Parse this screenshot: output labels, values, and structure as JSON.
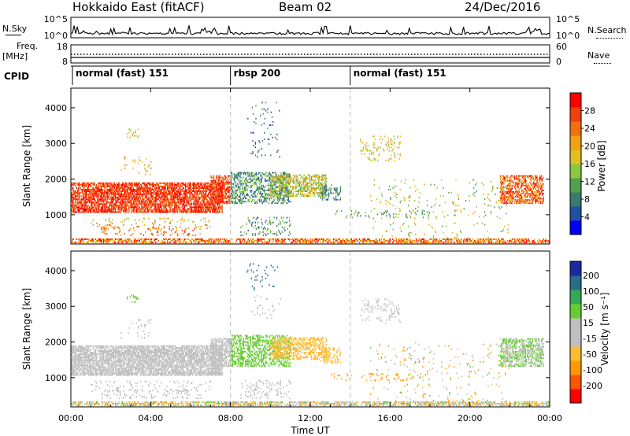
{
  "header": {
    "title": "Hokkaido East (fitACF)",
    "beam": "Beam 02",
    "date": "24/Dec/2016"
  },
  "status_labels": {
    "nsky": "N.Sky",
    "nsearch": "N.Search",
    "freq": "Freq.",
    "freq_unit": "[MHz]",
    "nave": "Nave",
    "cpid": "CPID",
    "nsky_ticks": [
      "10^5",
      "10^0"
    ],
    "nsearch_ticks": [
      "10^5",
      "10^0"
    ],
    "freq_ticks": [
      "18",
      "8"
    ],
    "nave_ticks": [
      "60",
      "0"
    ]
  },
  "cpid_segments": [
    {
      "label": "normal (fast) 151",
      "start_h": 0
    },
    {
      "label": "rbsp 200",
      "start_h": 8
    },
    {
      "label": "normal (fast) 151",
      "start_h": 14
    }
  ],
  "colors": {
    "power_scale": [
      "#0000ff",
      "#2050a0",
      "#3a7a70",
      "#50a050",
      "#8cc840",
      "#e0c020",
      "#f0a010",
      "#f07010",
      "#f04010",
      "#ff0000"
    ],
    "velocity_scale": [
      "#ff0000",
      "#ff5500",
      "#ff9900",
      "#ffbb33",
      "#c0c0c0",
      "#c0c0c0",
      "#66cc33",
      "#33aa55",
      "#2a6a8a",
      "#1a2aa0"
    ]
  },
  "chart_data": [
    {
      "type": "heatmap",
      "name": "power-panel",
      "ylabel": "Slant Range [km]",
      "yticks": [
        1000,
        2000,
        3000,
        4000
      ],
      "ylim": [
        180,
        4550
      ],
      "xlim_h": [
        0,
        24
      ],
      "colorbar": {
        "label": "Power [dB]",
        "ticks": [
          4,
          8,
          12,
          16,
          20,
          24,
          28
        ]
      }
    },
    {
      "type": "heatmap",
      "name": "velocity-panel",
      "ylabel": "Slant Range [km]",
      "yticks": [
        1000,
        2000,
        3000,
        4000
      ],
      "ylim": [
        180,
        4550
      ],
      "xlim_h": [
        0,
        24
      ],
      "xlabel": "Time UT",
      "xticks": [
        "00:00",
        "04:00",
        "08:00",
        "12:00",
        "16:00",
        "20:00",
        "00:00"
      ],
      "colorbar": {
        "label": "Velocity [m s⁻¹]",
        "ticks": [
          200,
          100,
          50,
          15,
          -15,
          -50,
          -100,
          -200
        ]
      }
    }
  ]
}
